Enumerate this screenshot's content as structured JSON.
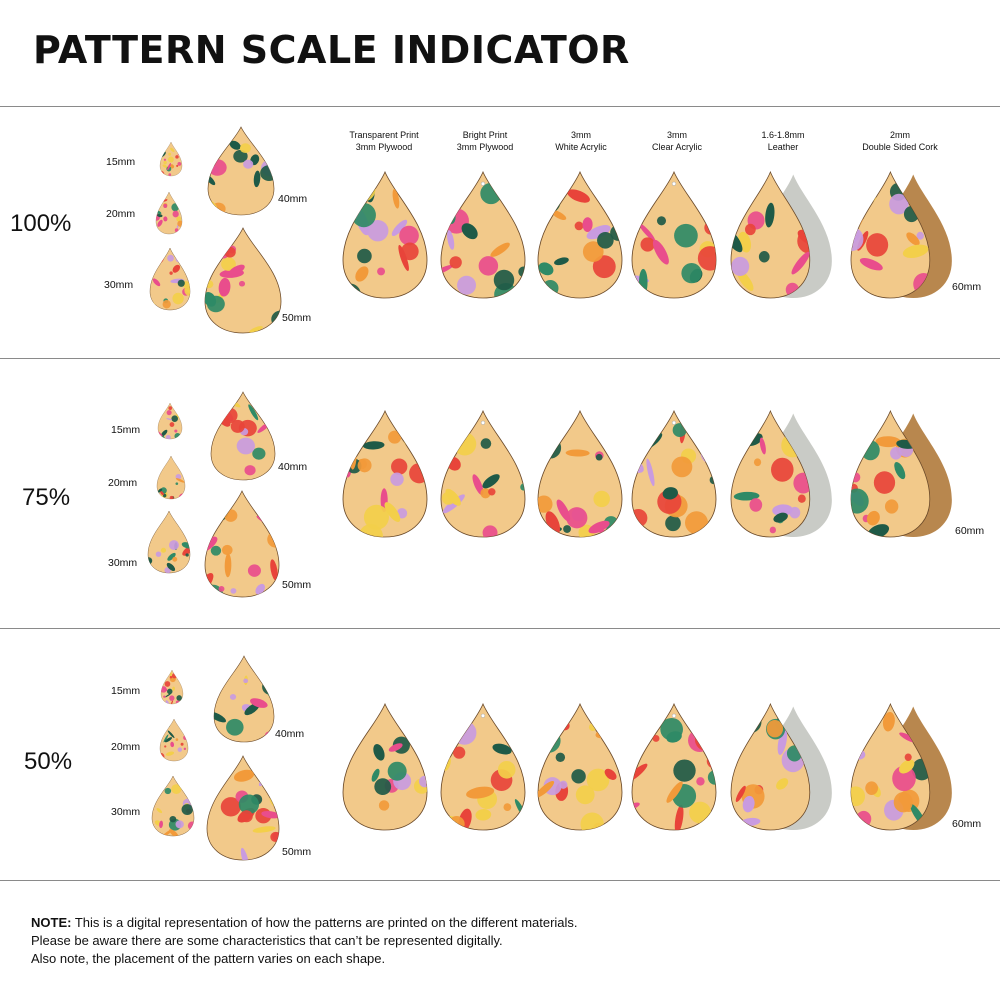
{
  "page_title": "PATTERN SCALE INDICATOR",
  "materials": [
    {
      "line1": "Transparent Print",
      "line2": "3mm Plywood"
    },
    {
      "line1": "Bright Print",
      "line2": "3mm Plywood"
    },
    {
      "line1": "3mm",
      "line2": "White Acrylic"
    },
    {
      "line1": "3mm",
      "line2": "Clear Acrylic"
    },
    {
      "line1": "1.6-1.8mm",
      "line2": "Leather"
    },
    {
      "line1": "2mm",
      "line2": "Double Sided Cork"
    }
  ],
  "sections": [
    {
      "label": "100%",
      "sizes": [
        "15mm",
        "20mm",
        "30mm",
        "40mm",
        "50mm"
      ],
      "large_size": "60mm"
    },
    {
      "label": "75%",
      "sizes": [
        "15mm",
        "20mm",
        "30mm",
        "40mm",
        "50mm"
      ],
      "large_size": "60mm"
    },
    {
      "label": "50%",
      "sizes": [
        "15mm",
        "20mm",
        "30mm",
        "40mm",
        "50mm"
      ],
      "large_size": "60mm"
    }
  ],
  "note": {
    "prefix": "NOTE:",
    "line1": " This is a digital representation of how the patterns are printed on the different materials.",
    "line2": "Please be aware there are some characteristics that can’t be represented digitally.",
    "line3": "Also note, the placement of the pattern varies on each shape."
  },
  "colors": {
    "divider": "#8a8a8a",
    "base_light": "#f2c98a",
    "leather": "#c9cbc6",
    "cork": "#b8874e",
    "pink": "#e94d8c",
    "red": "#e8443a",
    "orange": "#f29a3a",
    "yellow": "#f3cf4a",
    "green": "#2f8a66",
    "dark_green": "#1f5a47",
    "lilac": "#c99be0"
  }
}
